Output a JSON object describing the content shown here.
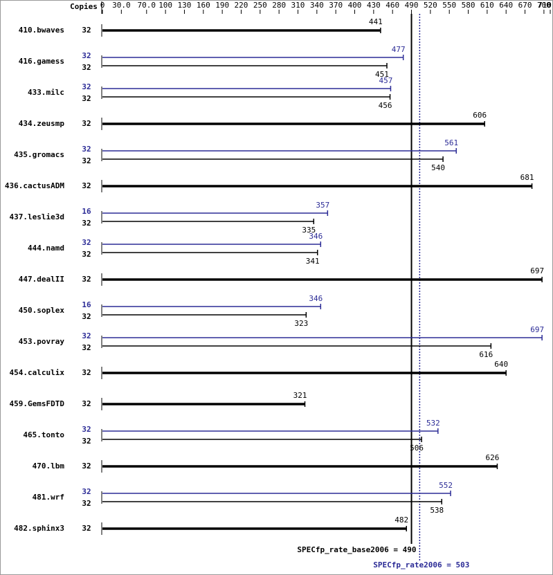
{
  "chart_data": {
    "type": "spec-bar",
    "header": "Copies",
    "xlim": [
      0,
      710
    ],
    "xticks": [
      0,
      {
        "value": 30,
        "label": "30.0"
      },
      {
        "value": 70,
        "label": "70.0"
      },
      100,
      130,
      160,
      190,
      220,
      250,
      280,
      310,
      340,
      370,
      400,
      430,
      460,
      490,
      520,
      550,
      580,
      610,
      640,
      670,
      700,
      710
    ],
    "base_color": "#000000",
    "peak_color": "#2b2b96",
    "benchmarks": [
      {
        "name": "410.bwaves",
        "base_copies": 32,
        "base": 441,
        "peak_copies": null,
        "peak": null
      },
      {
        "name": "416.gamess",
        "base_copies": 32,
        "base": 451,
        "peak_copies": 32,
        "peak": 477
      },
      {
        "name": "433.milc",
        "base_copies": 32,
        "base": 456,
        "peak_copies": 32,
        "peak": 457
      },
      {
        "name": "434.zeusmp",
        "base_copies": 32,
        "base": 606,
        "peak_copies": null,
        "peak": null
      },
      {
        "name": "435.gromacs",
        "base_copies": 32,
        "base": 540,
        "peak_copies": 32,
        "peak": 561
      },
      {
        "name": "436.cactusADM",
        "base_copies": 32,
        "base": 681,
        "peak_copies": null,
        "peak": null
      },
      {
        "name": "437.leslie3d",
        "base_copies": 32,
        "base": 335,
        "peak_copies": 16,
        "peak": 357
      },
      {
        "name": "444.namd",
        "base_copies": 32,
        "base": 341,
        "peak_copies": 32,
        "peak": 346
      },
      {
        "name": "447.dealII",
        "base_copies": 32,
        "base": 697,
        "peak_copies": null,
        "peak": null
      },
      {
        "name": "450.soplex",
        "base_copies": 32,
        "base": 323,
        "peak_copies": 16,
        "peak": 346
      },
      {
        "name": "453.povray",
        "base_copies": 32,
        "base": 616,
        "peak_copies": 32,
        "peak": 697
      },
      {
        "name": "454.calculix",
        "base_copies": 32,
        "base": 640,
        "peak_copies": null,
        "peak": null
      },
      {
        "name": "459.GemsFDTD",
        "base_copies": 32,
        "base": 321,
        "peak_copies": null,
        "peak": null
      },
      {
        "name": "465.tonto",
        "base_copies": 32,
        "base": 506,
        "peak_copies": 32,
        "peak": 532
      },
      {
        "name": "470.lbm",
        "base_copies": 32,
        "base": 626,
        "peak_copies": null,
        "peak": null
      },
      {
        "name": "481.wrf",
        "base_copies": 32,
        "base": 538,
        "peak_copies": 32,
        "peak": 552
      },
      {
        "name": "482.sphinx3",
        "base_copies": 32,
        "base": 482,
        "peak_copies": null,
        "peak": null
      }
    ],
    "reference_lines": [
      {
        "label": "SPECfp_rate_base2006 = 490",
        "value": 490,
        "color": "#000000",
        "dashed": false
      },
      {
        "label": "SPECfp_rate2006 = 503",
        "value": 503,
        "color": "#2b2b96",
        "dashed": true
      }
    ]
  }
}
